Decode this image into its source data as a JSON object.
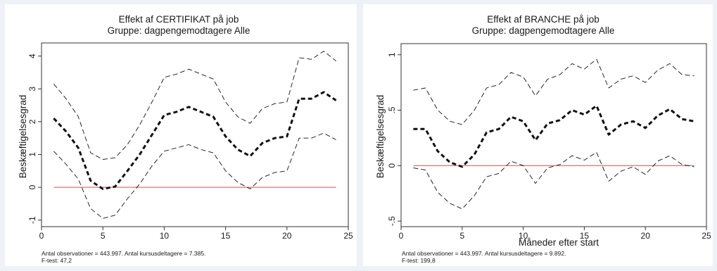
{
  "chart_data": [
    {
      "type": "line",
      "title": "Effekt af CERTIFIKAT på job",
      "subtitle": "Gruppe: dagpengemodtagere Alle",
      "xlabel": "",
      "ylabel": "Beskæftigelsesgrad",
      "xlim": [
        0,
        25
      ],
      "ylim": [
        -1.2,
        4.4
      ],
      "xticks": [
        0,
        5,
        10,
        15,
        20,
        25
      ],
      "yticks": [
        -1,
        0,
        1,
        2,
        3,
        4
      ],
      "x": [
        1,
        2,
        3,
        4,
        5,
        6,
        7,
        8,
        9,
        10,
        11,
        12,
        13,
        14,
        15,
        16,
        17,
        18,
        19,
        20,
        21,
        22,
        23,
        24
      ],
      "series": [
        {
          "role": "estimate",
          "values": [
            2.1,
            1.7,
            1.2,
            0.2,
            -0.05,
            0.02,
            0.5,
            1.0,
            1.6,
            2.2,
            2.3,
            2.45,
            2.3,
            2.15,
            1.55,
            1.15,
            0.95,
            1.35,
            1.5,
            1.55,
            2.7,
            2.7,
            2.9,
            2.65
          ]
        },
        {
          "role": "upper",
          "values": [
            3.15,
            2.7,
            2.15,
            1.05,
            0.85,
            0.9,
            1.3,
            1.9,
            2.6,
            3.35,
            3.45,
            3.6,
            3.45,
            3.3,
            2.6,
            2.15,
            1.95,
            2.4,
            2.55,
            2.6,
            3.95,
            3.9,
            4.15,
            3.85
          ]
        },
        {
          "role": "lower",
          "values": [
            1.1,
            0.7,
            0.25,
            -0.65,
            -0.95,
            -0.85,
            -0.35,
            0.1,
            0.65,
            1.1,
            1.2,
            1.3,
            1.15,
            1.05,
            0.5,
            0.15,
            -0.05,
            0.3,
            0.45,
            0.5,
            1.5,
            1.5,
            1.65,
            1.45
          ]
        }
      ],
      "reference_line": {
        "y": 0,
        "color": "#e06060"
      },
      "footnote": [
        "Antal observationer =  443.997. Antal kursusdeltagere = 7.385.",
        "F-test:  47,2"
      ]
    },
    {
      "type": "line",
      "title": "Effekt af BRANCHE på job",
      "subtitle": "Gruppe: dagpengemodtagere Alle",
      "xlabel": "Måneder efter start",
      "ylabel": "Beskæftigelsesgrad",
      "xlim": [
        0,
        25
      ],
      "ylim": [
        -0.55,
        1.1
      ],
      "xticks": [
        0,
        5,
        10,
        15,
        20,
        25
      ],
      "yticks": [
        -0.5,
        0,
        0.5,
        1
      ],
      "ytick_labels": [
        "-.5",
        "0",
        ".5",
        "1"
      ],
      "x": [
        1,
        2,
        3,
        4,
        5,
        6,
        7,
        8,
        9,
        10,
        11,
        12,
        13,
        14,
        15,
        16,
        17,
        18,
        19,
        20,
        21,
        22,
        23,
        24
      ],
      "series": [
        {
          "role": "estimate",
          "values": [
            0.33,
            0.33,
            0.13,
            0.03,
            -0.01,
            0.1,
            0.3,
            0.33,
            0.44,
            0.4,
            0.23,
            0.38,
            0.41,
            0.5,
            0.46,
            0.54,
            0.28,
            0.37,
            0.4,
            0.34,
            0.45,
            0.51,
            0.42,
            0.4
          ]
        },
        {
          "role": "upper",
          "values": [
            0.68,
            0.7,
            0.5,
            0.4,
            0.37,
            0.5,
            0.7,
            0.73,
            0.84,
            0.8,
            0.63,
            0.78,
            0.82,
            0.92,
            0.87,
            0.96,
            0.7,
            0.78,
            0.81,
            0.75,
            0.86,
            0.92,
            0.82,
            0.81
          ]
        },
        {
          "role": "lower",
          "values": [
            -0.02,
            -0.04,
            -0.24,
            -0.34,
            -0.39,
            -0.27,
            -0.1,
            -0.07,
            0.04,
            0.0,
            -0.16,
            -0.02,
            0.01,
            0.09,
            0.05,
            0.12,
            -0.14,
            -0.05,
            -0.01,
            -0.08,
            0.04,
            0.09,
            0.01,
            -0.01
          ]
        }
      ],
      "reference_line": {
        "y": 0,
        "color": "#e06060"
      },
      "footnote": [
        "Antal observationer =  443.997. Antal kursusdeltagere = 9.892.",
        "F-test:  199,8"
      ]
    }
  ]
}
